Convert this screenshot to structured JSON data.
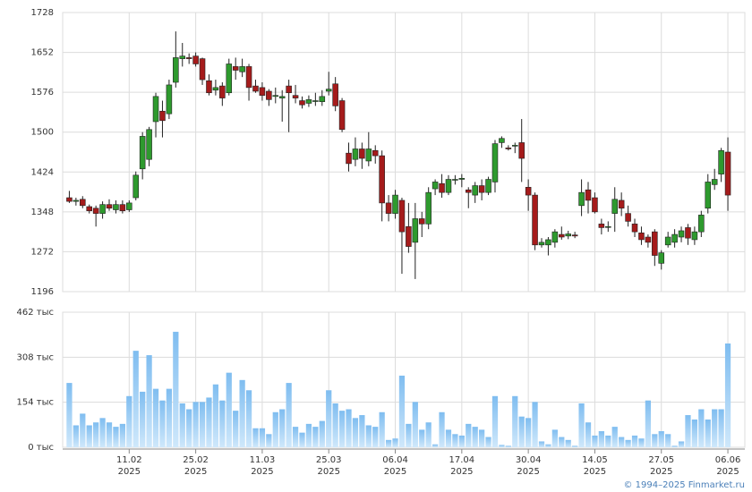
{
  "chart_data": {
    "type": "candlestick",
    "categories": [
      null,
      null,
      null,
      null,
      null,
      null,
      null,
      null,
      null,
      "11.02\n2025",
      null,
      null,
      null,
      null,
      null,
      null,
      null,
      null,
      null,
      "25.02\n2025",
      null,
      null,
      null,
      null,
      null,
      null,
      null,
      null,
      null,
      "11.03\n2025",
      null,
      null,
      null,
      null,
      null,
      null,
      null,
      null,
      null,
      "25.03\n2025",
      null,
      null,
      null,
      null,
      null,
      null,
      null,
      null,
      null,
      "06.04\n2025",
      null,
      null,
      null,
      null,
      null,
      null,
      null,
      null,
      null,
      "17.04\n2025",
      null,
      null,
      null,
      null,
      null,
      null,
      null,
      null,
      null,
      "30.04\n2025",
      null,
      null,
      null,
      null,
      null,
      null,
      null,
      null,
      null,
      "14.05\n2025",
      null,
      null,
      null,
      null,
      null,
      null,
      null,
      null,
      null,
      "27.05\n2025",
      null,
      null,
      null,
      null,
      null,
      null,
      null,
      null,
      null,
      "06.06\n2025"
    ],
    "open": [
      1375,
      1368,
      1372,
      1358,
      1355,
      1345,
      1362,
      1352,
      1362,
      1352,
      1375,
      1430,
      1448,
      1520,
      1540,
      1535,
      1595,
      1640,
      1642,
      1645,
      1640,
      1598,
      1580,
      1588,
      1575,
      1625,
      1615,
      1625,
      1588,
      1585,
      1578,
      1568,
      1565,
      1588,
      1570,
      1560,
      1555,
      1560,
      1558,
      1578,
      1592,
      1560,
      1460,
      1448,
      1468,
      1445,
      1465,
      1455,
      1365,
      1345,
      1370,
      1320,
      1290,
      1335,
      1325,
      1392,
      1402,
      1385,
      1410,
      1410,
      1390,
      1380,
      1398,
      1385,
      1405,
      1480,
      1470,
      1475,
      1480,
      1395,
      1380,
      1285,
      1285,
      1290,
      1305,
      1302,
      1304,
      1360,
      1390,
      1375,
      1325,
      1320,
      1345,
      1370,
      1345,
      1325,
      1308,
      1300,
      1310,
      1250,
      1285,
      1290,
      1300,
      1318,
      1295,
      1310,
      1355,
      1400,
      1420,
      1462
    ],
    "high": [
      1388,
      1375,
      1378,
      1362,
      1360,
      1368,
      1372,
      1370,
      1370,
      1370,
      1425,
      1500,
      1510,
      1575,
      1560,
      1600,
      1692,
      1670,
      1650,
      1652,
      1642,
      1610,
      1600,
      1595,
      1640,
      1642,
      1640,
      1630,
      1600,
      1595,
      1582,
      1585,
      1580,
      1600,
      1590,
      1568,
      1570,
      1575,
      1580,
      1615,
      1605,
      1565,
      1480,
      1490,
      1480,
      1500,
      1475,
      1465,
      1380,
      1390,
      1375,
      1365,
      1365,
      1348,
      1395,
      1410,
      1420,
      1418,
      1418,
      1420,
      1395,
      1405,
      1410,
      1415,
      1485,
      1492,
      1475,
      1480,
      1525,
      1410,
      1385,
      1298,
      1300,
      1315,
      1320,
      1312,
      1310,
      1410,
      1405,
      1385,
      1335,
      1330,
      1395,
      1385,
      1360,
      1335,
      1320,
      1305,
      1315,
      1275,
      1310,
      1315,
      1320,
      1325,
      1320,
      1350,
      1420,
      1430,
      1470,
      1490
    ],
    "low": [
      1365,
      1360,
      1355,
      1345,
      1320,
      1335,
      1350,
      1345,
      1345,
      1348,
      1370,
      1410,
      1435,
      1490,
      1490,
      1525,
      1585,
      1625,
      1630,
      1625,
      1590,
      1570,
      1570,
      1550,
      1570,
      1600,
      1605,
      1560,
      1575,
      1560,
      1550,
      1555,
      1520,
      1500,
      1555,
      1545,
      1548,
      1550,
      1550,
      1570,
      1540,
      1500,
      1425,
      1435,
      1430,
      1435,
      1440,
      1330,
      1330,
      1335,
      1230,
      1270,
      1220,
      1300,
      1315,
      1380,
      1375,
      1380,
      1400,
      1395,
      1355,
      1365,
      1370,
      1380,
      1385,
      1470,
      1465,
      1460,
      1405,
      1350,
      1275,
      1280,
      1265,
      1280,
      1295,
      1296,
      1298,
      1340,
      1345,
      1345,
      1305,
      1310,
      1310,
      1340,
      1320,
      1300,
      1285,
      1280,
      1245,
      1238,
      1280,
      1280,
      1290,
      1285,
      1285,
      1300,
      1345,
      1390,
      1405,
      1350
    ],
    "close": [
      1368,
      1370,
      1360,
      1350,
      1345,
      1362,
      1355,
      1362,
      1350,
      1365,
      1418,
      1492,
      1505,
      1568,
      1522,
      1590,
      1642,
      1645,
      1640,
      1630,
      1600,
      1575,
      1585,
      1565,
      1630,
      1618,
      1625,
      1585,
      1578,
      1570,
      1562,
      1570,
      1568,
      1575,
      1565,
      1552,
      1562,
      1560,
      1568,
      1582,
      1550,
      1505,
      1440,
      1468,
      1450,
      1468,
      1455,
      1365,
      1345,
      1380,
      1310,
      1282,
      1335,
      1325,
      1385,
      1405,
      1385,
      1410,
      1410,
      1412,
      1385,
      1398,
      1385,
      1410,
      1478,
      1488,
      1468,
      1475,
      1450,
      1380,
      1285,
      1290,
      1295,
      1310,
      1300,
      1306,
      1302,
      1385,
      1370,
      1348,
      1318,
      1320,
      1372,
      1355,
      1330,
      1310,
      1295,
      1290,
      1265,
      1270,
      1300,
      1305,
      1312,
      1298,
      1310,
      1342,
      1405,
      1410,
      1465,
      1380
    ],
    "up_color": "#2e9a2e",
    "down_color": "#a51b1b",
    "ylim": [
      1196,
      1728
    ],
    "yticks": [
      1196,
      1272,
      1348,
      1424,
      1500,
      1576,
      1652,
      1728
    ],
    "grid": true,
    "volume": {
      "values": [
        220,
        75,
        115,
        75,
        85,
        100,
        85,
        70,
        80,
        175,
        330,
        190,
        315,
        200,
        160,
        200,
        395,
        150,
        130,
        155,
        155,
        170,
        215,
        160,
        255,
        125,
        230,
        195,
        65,
        65,
        45,
        120,
        130,
        220,
        70,
        50,
        80,
        70,
        90,
        195,
        150,
        125,
        130,
        100,
        110,
        75,
        70,
        120,
        25,
        30,
        245,
        80,
        155,
        60,
        85,
        10,
        120,
        60,
        45,
        40,
        80,
        70,
        60,
        35,
        175,
        8,
        5,
        175,
        105,
        100,
        155,
        20,
        10,
        60,
        35,
        25,
        5,
        150,
        85,
        40,
        55,
        40,
        70,
        35,
        25,
        40,
        30,
        160,
        45,
        55,
        45,
        5,
        20,
        110,
        95,
        130,
        95,
        130,
        130,
        355
      ],
      "color": "#8ec8f2",
      "ylim": [
        0,
        462
      ],
      "yticks": [
        {
          "value": 0,
          "label": "0 тыс"
        },
        {
          "value": 154,
          "label": "154 тыс"
        },
        {
          "value": 308,
          "label": "308 тыс"
        },
        {
          "value": 462,
          "label": "462 тыс"
        }
      ]
    },
    "source": "© 1994–2025 Finmarket.ru"
  }
}
